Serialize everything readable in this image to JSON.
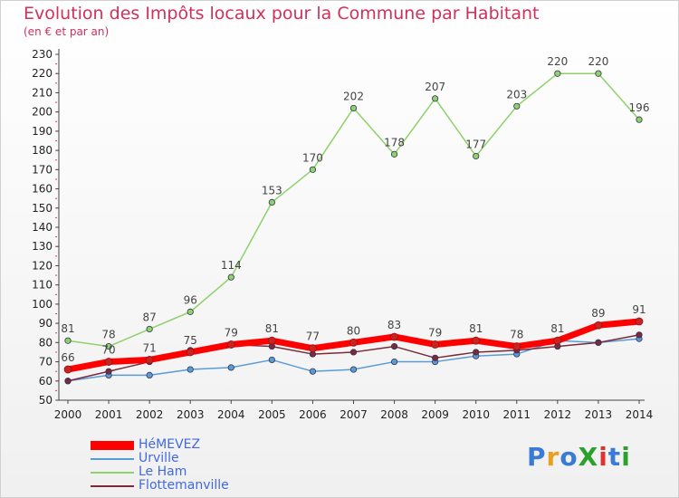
{
  "page": {
    "title": "Evolution des Impôts locaux pour la Commune par Habitant",
    "subtitle": "(en € et par an)",
    "logo": "ProXiti"
  },
  "chart_data": {
    "type": "line",
    "x": [
      "2000",
      "2001",
      "2002",
      "2003",
      "2004",
      "2005",
      "2006",
      "2007",
      "2008",
      "2009",
      "2010",
      "2011",
      "2012",
      "2013",
      "2014"
    ],
    "ylim": [
      50,
      230
    ],
    "yticks": [
      50,
      60,
      70,
      80,
      90,
      100,
      110,
      120,
      130,
      140,
      150,
      160,
      170,
      180,
      190,
      200,
      210,
      220,
      230
    ],
    "grid": false,
    "legend_position": "bottom-left",
    "series": [
      {
        "name": "HéMEVEZ",
        "color": "#ff0000",
        "values": [
          66,
          70,
          71,
          75,
          79,
          81,
          77,
          80,
          83,
          79,
          81,
          78,
          81,
          89,
          91
        ],
        "labeled": true
      },
      {
        "name": "Urville",
        "color": "#5b9bd5",
        "values": [
          60,
          63,
          63,
          66,
          67,
          71,
          65,
          66,
          70,
          70,
          73,
          74,
          81,
          80,
          82
        ],
        "labeled": false
      },
      {
        "name": "Le Ham",
        "color": "#8fd16a",
        "values": [
          81,
          78,
          87,
          96,
          114,
          153,
          170,
          202,
          178,
          207,
          177,
          203,
          220,
          220,
          196
        ],
        "labeled": true
      },
      {
        "name": "Flottemanville",
        "color": "#7a2a3a",
        "values": [
          60,
          65,
          70,
          76,
          79,
          78,
          74,
          75,
          78,
          72,
          75,
          76,
          78,
          80,
          84
        ],
        "labeled": false
      }
    ]
  }
}
